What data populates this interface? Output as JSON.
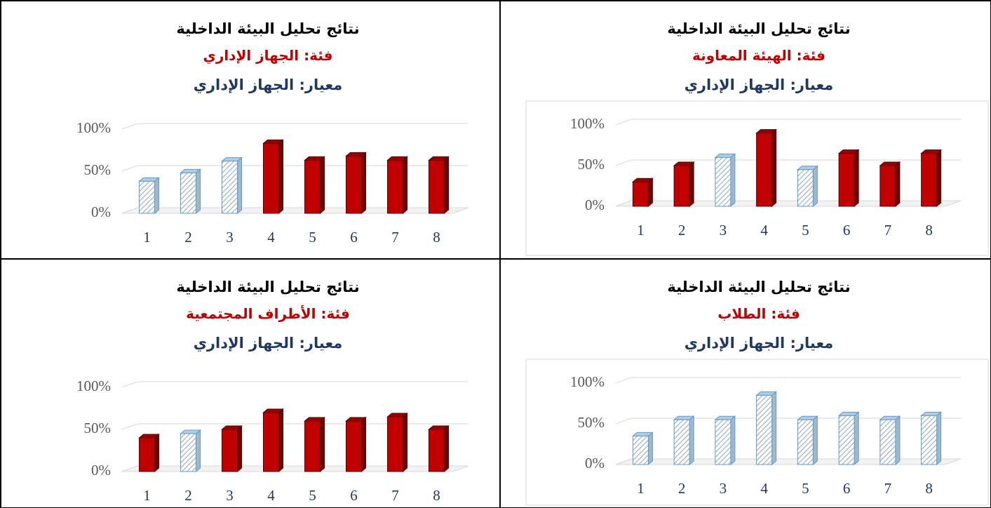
{
  "chart_data": [
    {
      "type": "bar3d",
      "title": "نتائج تحليل البيئة الداخلية",
      "subtitle": "فئة: الجهاز الإداري",
      "criterion": "معيار: الجهاز الإداري",
      "categories": [
        "1",
        "2",
        "3",
        "4",
        "5",
        "6",
        "7",
        "8"
      ],
      "values": [
        38,
        48,
        62,
        83,
        63,
        68,
        63,
        63
      ],
      "colors": [
        "#bdd7ee",
        "#bdd7ee",
        "#bdd7ee",
        "#c00000",
        "#c00000",
        "#c00000",
        "#c00000",
        "#c00000"
      ],
      "ylim": [
        0,
        100
      ],
      "yticks": [
        {
          "value": 0,
          "label": "0%"
        },
        {
          "value": 50,
          "label": "50%"
        },
        {
          "value": 100,
          "label": "100%"
        }
      ],
      "grid": true
    },
    {
      "type": "bar3d",
      "title": "نتائج تحليل البيئة الداخلية",
      "subtitle": "فئة: الهيئة المعاونة",
      "criterion": "معيار: الجهاز الإداري",
      "categories": [
        "1",
        "2",
        "3",
        "4",
        "5",
        "6",
        "7",
        "8"
      ],
      "values": [
        30,
        50,
        60,
        90,
        45,
        65,
        50,
        65
      ],
      "colors": [
        "#c00000",
        "#c00000",
        "#bdd7ee",
        "#c00000",
        "#bdd7ee",
        "#c00000",
        "#c00000",
        "#c00000"
      ],
      "ylim": [
        0,
        100
      ],
      "yticks": [
        {
          "value": 0,
          "label": "0%"
        },
        {
          "value": 50,
          "label": "50%"
        },
        {
          "value": 100,
          "label": "100%"
        }
      ],
      "grid": true
    },
    {
      "type": "bar3d",
      "title": "نتائج تحليل البيئة الداخلية",
      "subtitle": "فئة: الأطراف المجتمعية",
      "criterion": "معيار: الجهاز الإداري",
      "categories": [
        "1",
        "2",
        "3",
        "4",
        "5",
        "6",
        "7",
        "8"
      ],
      "values": [
        40,
        45,
        50,
        70,
        60,
        60,
        65,
        50
      ],
      "colors": [
        "#c00000",
        "#bdd7ee",
        "#c00000",
        "#c00000",
        "#c00000",
        "#c00000",
        "#c00000",
        "#c00000"
      ],
      "ylim": [
        0,
        100
      ],
      "yticks": [
        {
          "value": 0,
          "label": "0%"
        },
        {
          "value": 50,
          "label": "50%"
        },
        {
          "value": 100,
          "label": "100%"
        }
      ],
      "grid": true
    },
    {
      "type": "bar3d",
      "title": "نتائج تحليل البيئة الداخلية",
      "subtitle": "فئة: الطلاب",
      "criterion": "معيار: الجهاز الإداري",
      "categories": [
        "1",
        "2",
        "3",
        "4",
        "5",
        "6",
        "7",
        "8"
      ],
      "values": [
        35,
        55,
        55,
        85,
        55,
        60,
        55,
        60
      ],
      "colors": [
        "#bdd7ee",
        "#bdd7ee",
        "#bdd7ee",
        "#bdd7ee",
        "#bdd7ee",
        "#bdd7ee",
        "#bdd7ee",
        "#bdd7ee"
      ],
      "ylim": [
        0,
        100
      ],
      "yticks": [
        {
          "value": 0,
          "label": "0%"
        },
        {
          "value": 50,
          "label": "50%"
        },
        {
          "value": 100,
          "label": "100%"
        }
      ],
      "grid": true
    }
  ]
}
